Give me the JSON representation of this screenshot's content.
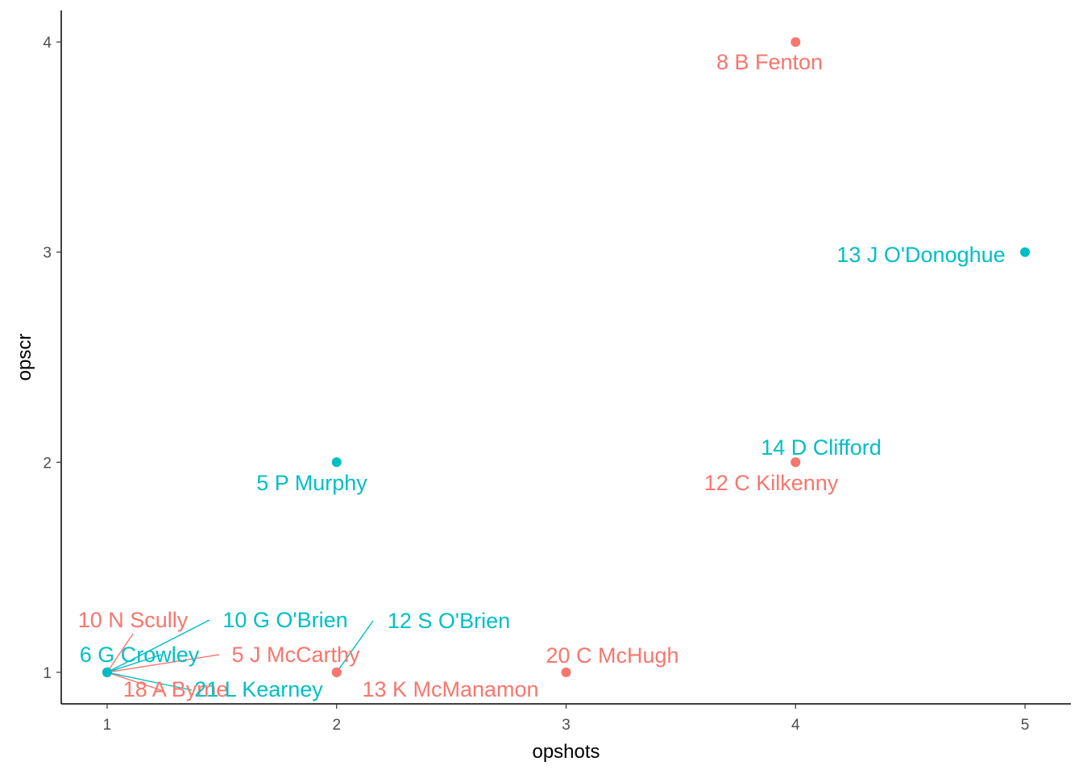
{
  "chart_data": {
    "type": "scatter",
    "xlabel": "opshots",
    "ylabel": "opscr",
    "xlim": [
      0.8,
      5.2
    ],
    "ylim": [
      0.85,
      4.15
    ],
    "x_ticks": [
      1,
      2,
      3,
      4,
      5
    ],
    "y_ticks": [
      1,
      2,
      3,
      4
    ],
    "x_tick_labels": [
      "1",
      "2",
      "3",
      "4",
      "5"
    ],
    "y_tick_labels": [
      "1",
      "2",
      "3",
      "4"
    ],
    "grid": false,
    "legend": "none",
    "colors": {
      "group_a": "#F8766D",
      "group_b": "#00BFC4"
    },
    "points": [
      {
        "label": "8  B Fenton",
        "x": 4,
        "y": 4,
        "group": "group_a"
      },
      {
        "label": "13  J O'Donoghue",
        "x": 5,
        "y": 3,
        "group": "group_b"
      },
      {
        "label": "14  D Clifford",
        "x": 4,
        "y": 2,
        "group": "group_b"
      },
      {
        "label": "12  C Kilkenny",
        "x": 4,
        "y": 2,
        "group": "group_a"
      },
      {
        "label": "5  P Murphy",
        "x": 2,
        "y": 2,
        "group": "group_b"
      },
      {
        "label": "20  C McHugh",
        "x": 3,
        "y": 1,
        "group": "group_a"
      },
      {
        "label": "12  S O'Brien",
        "x": 2,
        "y": 1,
        "group": "group_b"
      },
      {
        "label": "13  K McManamon",
        "x": 2,
        "y": 1,
        "group": "group_a"
      },
      {
        "label": "10  N Scully",
        "x": 1,
        "y": 1,
        "group": "group_a"
      },
      {
        "label": "10  G O'Brien",
        "x": 1,
        "y": 1,
        "group": "group_b"
      },
      {
        "label": "6  G Crowley",
        "x": 1,
        "y": 1,
        "group": "group_b"
      },
      {
        "label": "5  J McCarthy",
        "x": 1,
        "y": 1,
        "group": "group_a"
      },
      {
        "label": "18  A Byrne",
        "x": 1,
        "y": 1,
        "group": "group_a"
      },
      {
        "label": "21  L Kearney",
        "x": 1,
        "y": 1,
        "group": "group_b"
      }
    ]
  }
}
